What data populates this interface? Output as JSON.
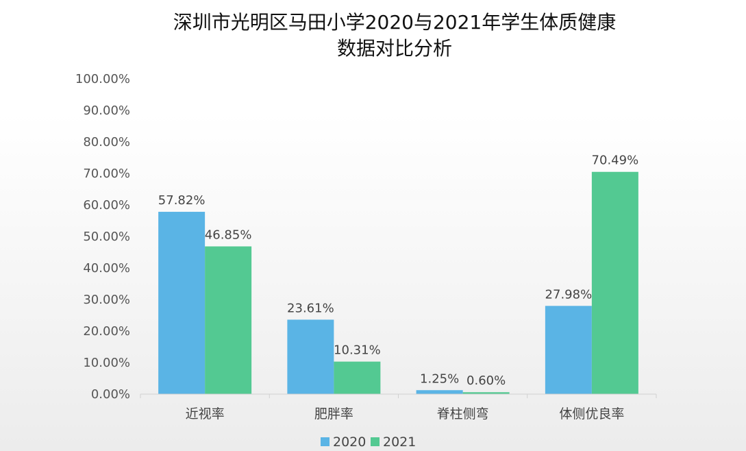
{
  "chart_data": {
    "type": "bar",
    "title_lines": [
      "深圳市光明区马田小学2020与2021年学生体质健康",
      "数据对比分析"
    ],
    "categories": [
      "近视率",
      "肥胖率",
      "脊柱侧弯",
      "体侧优良率"
    ],
    "series": [
      {
        "name": "2020",
        "color": "#5ab4e5",
        "values": [
          57.82,
          23.61,
          1.25,
          27.98
        ],
        "labels": [
          "57.82%",
          "23.61%",
          "1.25%",
          "27.98%"
        ]
      },
      {
        "name": "2021",
        "color": "#53c992",
        "values": [
          46.85,
          10.31,
          0.6,
          70.49
        ],
        "labels": [
          "46.85%",
          "10.31%",
          "0.60%",
          "70.49%"
        ]
      }
    ],
    "y_ticks": [
      "0.00%",
      "10.00%",
      "20.00%",
      "30.00%",
      "40.00%",
      "50.00%",
      "60.00%",
      "70.00%",
      "80.00%",
      "90.00%",
      "100.00%"
    ],
    "ylim": [
      0,
      100
    ],
    "grid": false,
    "legend_position": "bottom"
  }
}
